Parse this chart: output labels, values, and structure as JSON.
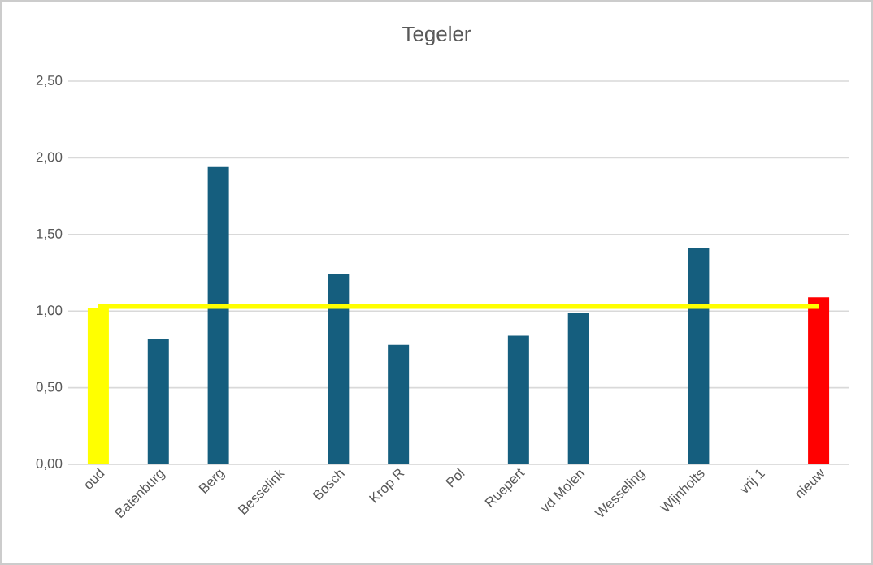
{
  "chart_data": {
    "type": "bar",
    "title": "Tegeler",
    "categories": [
      "oud",
      "Batenburg",
      "Berg",
      "Besselink",
      "Bosch",
      "Krop R",
      "Pol",
      "Ruepert",
      "vd Molen",
      "Wesseling",
      "Wijnholts",
      "vrij 1",
      "nieuw"
    ],
    "series": [
      {
        "colors": [
          "#ffff00",
          "#155e7e",
          "#155e7e",
          "#155e7e",
          "#155e7e",
          "#155e7e",
          "#155e7e",
          "#155e7e",
          "#155e7e",
          "#155e7e",
          "#155e7e",
          "#155e7e",
          "#ff0000"
        ],
        "values": [
          1.02,
          0.82,
          1.94,
          null,
          1.24,
          0.78,
          null,
          0.84,
          0.99,
          null,
          1.41,
          null,
          1.09
        ]
      },
      {
        "type": "line",
        "color": "#ffff00",
        "values": [
          1.03,
          1.03,
          1.03,
          1.03,
          1.03,
          1.03,
          1.03,
          1.03,
          1.03,
          1.03,
          1.03,
          1.03,
          1.03
        ]
      }
    ],
    "ylim": [
      0,
      2.5
    ],
    "yticks": [
      {
        "value": 0,
        "label": "0,00"
      },
      {
        "value": 0.5,
        "label": "0,50"
      },
      {
        "value": 1,
        "label": "1,00"
      },
      {
        "value": 1.5,
        "label": "1,50"
      },
      {
        "value": 2,
        "label": "2,00"
      },
      {
        "value": 2.5,
        "label": "2,50"
      }
    ],
    "grid": "y"
  }
}
